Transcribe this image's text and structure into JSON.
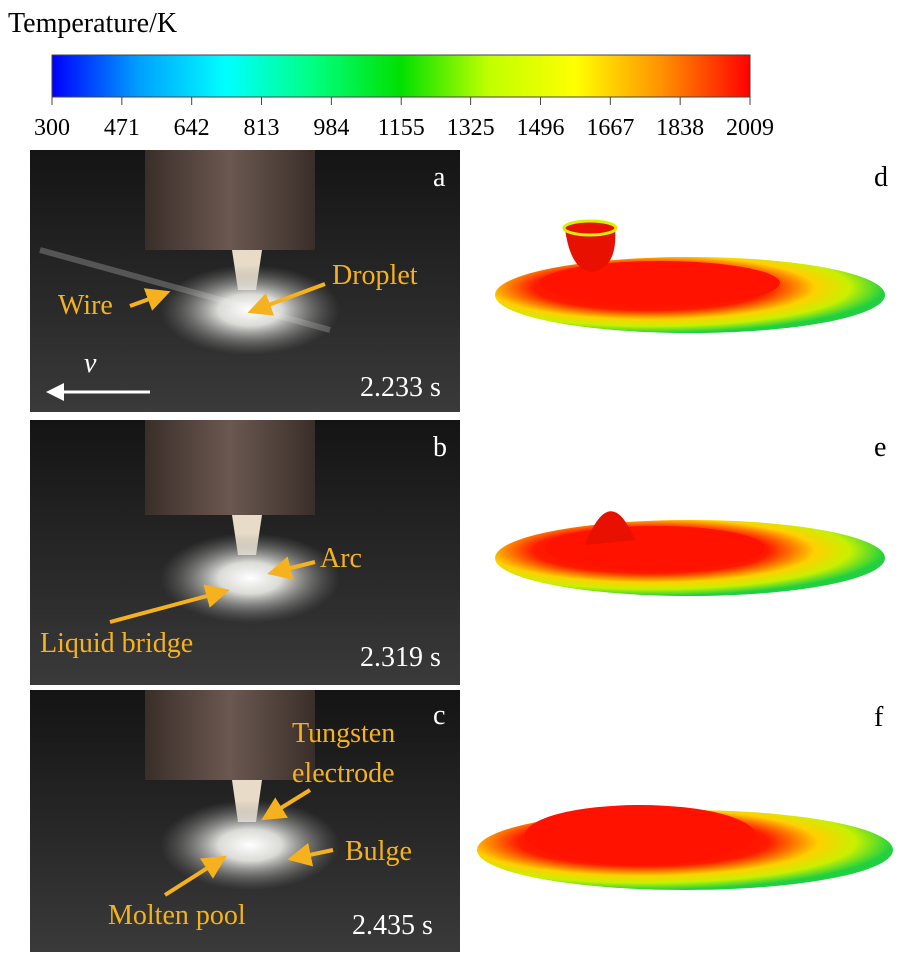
{
  "colorbar": {
    "title": "Temperature/K",
    "lim": [
      300,
      2009
    ],
    "ticks": [
      300,
      471,
      642,
      813,
      984,
      1155,
      1325,
      1496,
      1667,
      1838,
      2009
    ],
    "colors": [
      "#0000ff",
      "#00a0ff",
      "#00ffff",
      "#00ff80",
      "#00e000",
      "#c0ff00",
      "#ffff00",
      "#ff9000",
      "#ff0000"
    ]
  },
  "photo_panels": [
    {
      "label": "a",
      "time": "2.233 s",
      "velocity": "v",
      "annotations": [
        "Wire",
        "Droplet"
      ]
    },
    {
      "label": "b",
      "time": "2.319 s",
      "annotations": [
        "Arc",
        "Liquid bridge"
      ]
    },
    {
      "label": "c",
      "time": "2.435 s",
      "annotations": [
        "Tungsten",
        "electrode",
        "Bulge",
        "Molten pool"
      ]
    }
  ],
  "simulation_panels": [
    {
      "label": "d"
    },
    {
      "label": "e"
    },
    {
      "label": "f"
    }
  ]
}
